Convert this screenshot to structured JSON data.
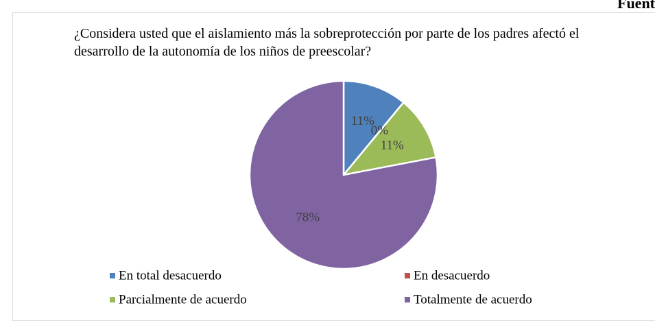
{
  "page": {
    "corner_text": "Fuent"
  },
  "chart_data": {
    "type": "pie",
    "title": "¿Considera usted que el aislamiento más la sobreprotección por parte de los padres afectó el desarrollo de la autonomía de los niños de preescolar?",
    "categories": [
      "En total desacuerdo",
      "En desacuerdo",
      "Parcialmente de acuerdo",
      "Totalmente de acuerdo"
    ],
    "values": [
      11,
      0,
      11,
      78
    ],
    "value_labels": [
      "11%",
      "0%",
      "11%",
      "78%"
    ],
    "colors": [
      "#4f81bd",
      "#c0504d",
      "#9bbb59",
      "#8064a2"
    ],
    "legend": "bottom"
  }
}
